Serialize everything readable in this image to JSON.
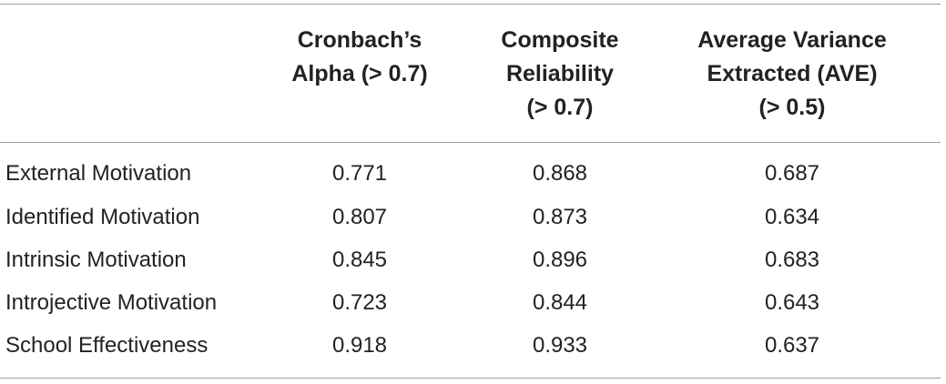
{
  "table": {
    "headers": [
      [
        "Cronbach’s",
        "Alpha (> 0.7)"
      ],
      [
        "Composite",
        "Reliability",
        "(> 0.7)"
      ],
      [
        "Average Variance",
        "Extracted (AVE)",
        "(> 0.5)"
      ]
    ],
    "rows": [
      {
        "label": "External Motivation",
        "alpha": "0.771",
        "cr": "0.868",
        "ave": "0.687"
      },
      {
        "label": "Identified Motivation",
        "alpha": "0.807",
        "cr": "0.873",
        "ave": "0.634"
      },
      {
        "label": "Intrinsic Motivation",
        "alpha": "0.845",
        "cr": "0.896",
        "ave": "0.683"
      },
      {
        "label": "Introjective Motivation",
        "alpha": "0.723",
        "cr": "0.844",
        "ave": "0.643"
      },
      {
        "label": "School Effectiveness",
        "alpha": "0.918",
        "cr": "0.933",
        "ave": "0.637"
      }
    ]
  }
}
